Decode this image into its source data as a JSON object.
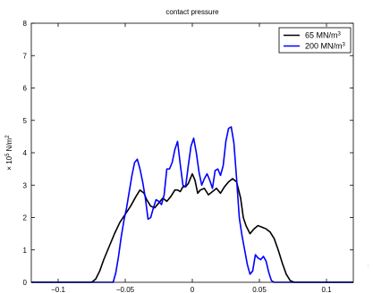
{
  "chart_data": {
    "type": "line",
    "title": "contact pressure",
    "ylabel": {
      "prefix": "× 10",
      "exponent": "5",
      "unit": " N/m",
      "unit_exponent": "2"
    },
    "xlim": [
      -0.12,
      0.12
    ],
    "ylim": [
      0,
      8
    ],
    "x_ticks": [
      -0.1,
      -0.05,
      0,
      0.05,
      0.1
    ],
    "x_tick_labels": [
      "−0.1",
      "−0.05",
      "0",
      "0.05",
      "0.1"
    ],
    "y_ticks": [
      0,
      1,
      2,
      3,
      4,
      5,
      6,
      7,
      8
    ],
    "y_tick_labels": [
      "0",
      "1",
      "2",
      "3",
      "4",
      "5",
      "6",
      "7",
      "8"
    ],
    "grid": false,
    "legend_position": "top-right",
    "series": [
      {
        "name": "65 MN/m",
        "name_sup": "3",
        "color": "#000000",
        "x": [
          -0.12,
          -0.075,
          -0.072,
          -0.069,
          -0.066,
          -0.062,
          -0.058,
          -0.054,
          -0.05,
          -0.046,
          -0.042,
          -0.039,
          -0.036,
          -0.034,
          -0.031,
          -0.028,
          -0.025,
          -0.022,
          -0.019,
          -0.016,
          -0.013,
          -0.011,
          -0.009,
          -0.007,
          -0.005,
          -0.003,
          -0.001,
          0.0,
          0.002,
          0.004,
          0.006,
          0.009,
          0.012,
          0.015,
          0.018,
          0.021,
          0.024,
          0.027,
          0.03,
          0.033,
          0.036,
          0.038,
          0.04,
          0.043,
          0.046,
          0.049,
          0.052,
          0.055,
          0.058,
          0.061,
          0.064,
          0.067,
          0.07,
          0.073,
          0.076,
          0.12
        ],
        "y": [
          0,
          0,
          0.1,
          0.35,
          0.7,
          1.1,
          1.5,
          1.85,
          2.1,
          2.35,
          2.65,
          2.85,
          2.75,
          2.55,
          2.35,
          2.3,
          2.45,
          2.6,
          2.5,
          2.65,
          2.85,
          2.85,
          2.8,
          2.95,
          2.95,
          3.05,
          3.25,
          3.35,
          3.15,
          2.75,
          2.85,
          2.9,
          2.7,
          2.8,
          2.9,
          2.75,
          2.95,
          3.1,
          3.2,
          3.1,
          2.6,
          2.0,
          1.75,
          1.5,
          1.65,
          1.75,
          1.7,
          1.65,
          1.55,
          1.35,
          1.0,
          0.6,
          0.25,
          0.05,
          0,
          0
        ]
      },
      {
        "name": "200 MN/m",
        "name_sup": "3",
        "color": "#0000ff",
        "x": [
          -0.12,
          -0.059,
          -0.057,
          -0.055,
          -0.053,
          -0.051,
          -0.049,
          -0.047,
          -0.045,
          -0.043,
          -0.041,
          -0.039,
          -0.037,
          -0.035,
          -0.033,
          -0.031,
          -0.029,
          -0.027,
          -0.025,
          -0.023,
          -0.021,
          -0.019,
          -0.017,
          -0.015,
          -0.013,
          -0.011,
          -0.009,
          -0.007,
          -0.005,
          -0.003,
          -0.001,
          0.001,
          0.003,
          0.005,
          0.007,
          0.009,
          0.011,
          0.013,
          0.015,
          0.017,
          0.019,
          0.021,
          0.023,
          0.025,
          0.027,
          0.029,
          0.031,
          0.033,
          0.035,
          0.037,
          0.039,
          0.041,
          0.043,
          0.045,
          0.047,
          0.049,
          0.051,
          0.053,
          0.055,
          0.057,
          0.059,
          0.061,
          0.063,
          0.065,
          0.12
        ],
        "y": [
          0,
          0,
          0.3,
          0.8,
          1.4,
          1.9,
          2.3,
          2.8,
          3.3,
          3.7,
          3.8,
          3.5,
          3.1,
          2.6,
          1.95,
          2.0,
          2.3,
          2.55,
          2.5,
          2.4,
          2.7,
          3.5,
          3.5,
          3.7,
          4.1,
          4.35,
          3.65,
          3.0,
          2.95,
          3.6,
          4.2,
          4.45,
          4.0,
          3.4,
          3.0,
          3.2,
          3.35,
          3.15,
          2.9,
          3.45,
          3.5,
          3.3,
          3.6,
          4.35,
          4.75,
          4.8,
          4.3,
          3.2,
          2.0,
          1.45,
          1.0,
          0.55,
          0.25,
          0.35,
          0.85,
          0.75,
          0.7,
          0.8,
          0.65,
          0.3,
          0.05,
          0,
          0,
          0,
          0
        ]
      }
    ]
  },
  "side_note": "..."
}
